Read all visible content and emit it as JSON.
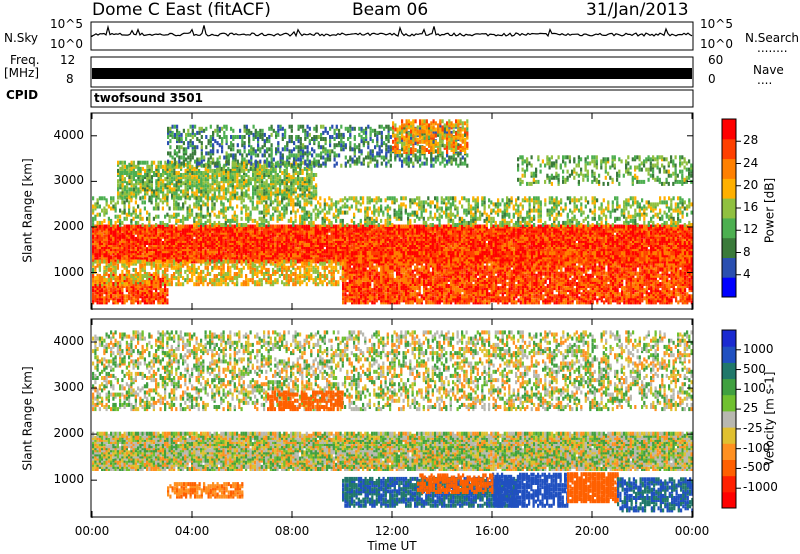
{
  "header": {
    "station": "Dome C East (fitACF)",
    "beam": "Beam 06",
    "date": "31/Jan/2013"
  },
  "left_labels": {
    "nsky": "N.Sky",
    "freq": "Freq.",
    "mhz": "[MHz]",
    "cpid": "CPID"
  },
  "right_labels": {
    "nsearch": "N.Search",
    "nsearch_key": "........",
    "nave": "Nave",
    "nave_key": "...."
  },
  "cpid_text": "twofsound 3501",
  "noise_axis": {
    "top": "10^5",
    "bottom": "10^0"
  },
  "freq_axis": {
    "top": "12",
    "bottom": "8"
  },
  "nave_axis": {
    "top": "60",
    "bottom": "0"
  },
  "colors": {
    "power_scale": [
      "#0000ff",
      "#2a4fb0",
      "#3a7a3a",
      "#4caf50",
      "#90c040",
      "#ffb000",
      "#ff8000",
      "#ff4000",
      "#ff0000"
    ],
    "velocity_scale": [
      "#1a2ad0",
      "#2050c0",
      "#20786a",
      "#40a040",
      "#70c030",
      "#b8b8b0",
      "#e0c030",
      "#ff9020",
      "#ff6000",
      "#ff2000",
      "#ff0000"
    ]
  },
  "chart_data": [
    {
      "type": "heatmap",
      "name": "power",
      "xlabel": "Time UT",
      "ylabel": "Slant Range [km]",
      "xticks": [
        "00:00",
        "04:00",
        "08:00",
        "12:00",
        "16:00",
        "20:00",
        "00:00"
      ],
      "xlim": [
        0,
        24
      ],
      "ylim": [
        200,
        4500
      ],
      "yticks": [
        1000,
        2000,
        3000,
        4000
      ],
      "colorbar_label": "Power [dB]",
      "colorbar_ticks": [
        4,
        8,
        12,
        16,
        20,
        24,
        28
      ],
      "colorbar_range": [
        0,
        30
      ],
      "bands": [
        {
          "t0": 0,
          "t1": 24,
          "r0": 1200,
          "r1": 2000,
          "value": 26,
          "density": 0.95
        },
        {
          "t0": 10,
          "t1": 24,
          "r0": 300,
          "r1": 1400,
          "value": 25,
          "density": 0.8
        },
        {
          "t0": 0,
          "t1": 3,
          "r0": 300,
          "r1": 900,
          "value": 25,
          "density": 0.7
        },
        {
          "t0": 0,
          "t1": 10,
          "r0": 700,
          "r1": 1200,
          "value": 18,
          "density": 0.5
        },
        {
          "t0": 1,
          "t1": 9,
          "r0": 2600,
          "r1": 3400,
          "value": 14,
          "density": 0.6
        },
        {
          "t0": 3,
          "t1": 15,
          "r0": 3300,
          "r1": 4200,
          "value": 9,
          "density": 0.35
        },
        {
          "t0": 12,
          "t1": 15,
          "r0": 3600,
          "r1": 4300,
          "value": 20,
          "density": 0.5
        },
        {
          "t0": 17,
          "t1": 24,
          "r0": 2900,
          "r1": 3500,
          "value": 12,
          "density": 0.3
        },
        {
          "t0": 0,
          "t1": 24,
          "r0": 2000,
          "r1": 2600,
          "value": 14,
          "density": 0.35
        }
      ]
    },
    {
      "type": "heatmap",
      "name": "velocity",
      "xlabel": "Time UT",
      "ylabel": "Slant Range [km]",
      "xticks": [
        "00:00",
        "04:00",
        "08:00",
        "12:00",
        "16:00",
        "20:00",
        "00:00"
      ],
      "xlim": [
        0,
        24
      ],
      "ylim": [
        200,
        4500
      ],
      "yticks": [
        1000,
        2000,
        3000,
        4000
      ],
      "colorbar_label": "Velocity [m s-1]",
      "colorbar_ticks": [
        "1000",
        "500",
        "100",
        "25",
        "-25",
        "-100",
        "-500",
        "-1000"
      ],
      "bands": [
        {
          "t0": 0,
          "t1": 24,
          "r0": 1200,
          "r1": 2000,
          "value": 0,
          "density": 0.9
        },
        {
          "t0": 10,
          "t1": 17,
          "r0": 400,
          "r1": 1000,
          "value": 300,
          "density": 0.7
        },
        {
          "t0": 16,
          "t1": 19,
          "r0": 400,
          "r1": 1100,
          "value": 500,
          "density": 0.7
        },
        {
          "t0": 13,
          "t1": 16,
          "r0": 700,
          "r1": 1100,
          "value": -300,
          "density": 0.6
        },
        {
          "t0": 19,
          "t1": 21,
          "r0": 500,
          "r1": 1100,
          "value": -400,
          "density": 0.8
        },
        {
          "t0": 21,
          "t1": 24,
          "r0": 300,
          "r1": 1000,
          "value": 300,
          "density": 0.6
        },
        {
          "t0": 3,
          "t1": 6,
          "r0": 600,
          "r1": 900,
          "value": -200,
          "density": 0.6
        },
        {
          "t0": 0,
          "t1": 24,
          "r0": 2500,
          "r1": 4200,
          "value": 0,
          "density": 0.35
        },
        {
          "t0": 7,
          "t1": 10,
          "r0": 2500,
          "r1": 2900,
          "value": -300,
          "density": 0.5
        }
      ]
    }
  ]
}
